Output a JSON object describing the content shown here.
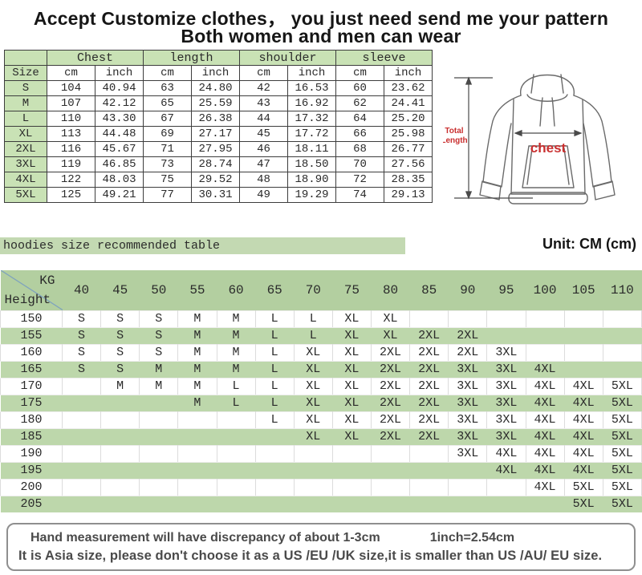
{
  "header": {
    "line1": "Accept Customize clothes， you just need send me your pattern",
    "line2": "Both women and men can wear"
  },
  "size_table": {
    "corner_label": "Size",
    "groups": [
      {
        "label": "Chest"
      },
      {
        "label": "length"
      },
      {
        "label": "shoulder"
      },
      {
        "label": "sleeve"
      }
    ],
    "unit_headers": [
      "cm",
      "inch",
      "cm",
      "inch",
      "cm",
      "inch",
      "cm",
      "inch"
    ],
    "rows": [
      {
        "size": "S",
        "values": [
          "104",
          "40.94",
          "63",
          "24.80",
          "42",
          "16.53",
          "60",
          "23.62"
        ]
      },
      {
        "size": "M",
        "values": [
          "107",
          "42.12",
          "65",
          "25.59",
          "43",
          "16.92",
          "62",
          "24.41"
        ]
      },
      {
        "size": "L",
        "values": [
          "110",
          "43.30",
          "67",
          "26.38",
          "44",
          "17.32",
          "64",
          "25.20"
        ]
      },
      {
        "size": "XL",
        "values": [
          "113",
          "44.48",
          "69",
          "27.17",
          "45",
          "17.72",
          "66",
          "25.98"
        ]
      },
      {
        "size": "2XL",
        "values": [
          "116",
          "45.67",
          "71",
          "27.95",
          "46",
          "18.11",
          "68",
          "26.77"
        ]
      },
      {
        "size": "3XL",
        "values": [
          "119",
          "46.85",
          "73",
          "28.74",
          "47",
          "18.50",
          "70",
          "27.56"
        ]
      },
      {
        "size": "4XL",
        "values": [
          "122",
          "48.03",
          "75",
          "29.52",
          "48",
          "18.90",
          "72",
          "28.35"
        ]
      },
      {
        "size": "5XL",
        "values": [
          "125",
          "49.21",
          "77",
          "30.31",
          "49",
          "19.29",
          "74",
          "29.13"
        ]
      }
    ]
  },
  "diagram": {
    "chest_label": "chest",
    "total_length_line1": "Total",
    "total_length_line2": "Length"
  },
  "recommend": {
    "banner": "hoodies size recommended table",
    "unit_label": "Unit: CM (cm)",
    "corner_top": "KG",
    "corner_bottom": "Height",
    "kg_columns": [
      "40",
      "45",
      "50",
      "55",
      "60",
      "65",
      "70",
      "75",
      "80",
      "85",
      "90",
      "95",
      "100",
      "105",
      "110"
    ],
    "rows": [
      {
        "height": "150",
        "cells": [
          "S",
          "S",
          "S",
          "M",
          "M",
          "L",
          "L",
          "XL",
          "XL",
          "",
          "",
          "",
          "",
          "",
          ""
        ]
      },
      {
        "height": "155",
        "cells": [
          "S",
          "S",
          "S",
          "M",
          "M",
          "L",
          "L",
          "XL",
          "XL",
          "2XL",
          "2XL",
          "",
          "",
          "",
          ""
        ]
      },
      {
        "height": "160",
        "cells": [
          "S",
          "S",
          "S",
          "M",
          "M",
          "L",
          "XL",
          "XL",
          "2XL",
          "2XL",
          "2XL",
          "3XL",
          "",
          "",
          ""
        ]
      },
      {
        "height": "165",
        "cells": [
          "S",
          "S",
          "M",
          "M",
          "M",
          "L",
          "XL",
          "XL",
          "2XL",
          "2XL",
          "3XL",
          "3XL",
          "4XL",
          "",
          ""
        ]
      },
      {
        "height": "170",
        "cells": [
          "",
          "M",
          "M",
          "M",
          "L",
          "L",
          "XL",
          "XL",
          "2XL",
          "2XL",
          "3XL",
          "3XL",
          "4XL",
          "4XL",
          "5XL"
        ]
      },
      {
        "height": "175",
        "cells": [
          "",
          "",
          "",
          "M",
          "L",
          "L",
          "XL",
          "XL",
          "2XL",
          "2XL",
          "3XL",
          "3XL",
          "4XL",
          "4XL",
          "5XL"
        ]
      },
      {
        "height": "180",
        "cells": [
          "",
          "",
          "",
          "",
          "",
          "L",
          "XL",
          "XL",
          "2XL",
          "2XL",
          "3XL",
          "3XL",
          "4XL",
          "4XL",
          "5XL"
        ]
      },
      {
        "height": "185",
        "cells": [
          "",
          "",
          "",
          "",
          "",
          "",
          "XL",
          "XL",
          "2XL",
          "2XL",
          "3XL",
          "3XL",
          "4XL",
          "4XL",
          "5XL"
        ]
      },
      {
        "height": "190",
        "cells": [
          "",
          "",
          "",
          "",
          "",
          "",
          "",
          "",
          "",
          "",
          "3XL",
          "4XL",
          "4XL",
          "4XL",
          "5XL"
        ]
      },
      {
        "height": "195",
        "cells": [
          "",
          "",
          "",
          "",
          "",
          "",
          "",
          "",
          "",
          "",
          "",
          "4XL",
          "4XL",
          "4XL",
          "5XL"
        ]
      },
      {
        "height": "200",
        "cells": [
          "",
          "",
          "",
          "",
          "",
          "",
          "",
          "",
          "",
          "",
          "",
          "",
          "4XL",
          "5XL",
          "5XL"
        ]
      },
      {
        "height": "205",
        "cells": [
          "",
          "",
          "",
          "",
          "",
          "",
          "",
          "",
          "",
          "",
          "",
          "",
          "",
          "5XL",
          "5XL"
        ]
      }
    ]
  },
  "footer": {
    "line1_left": "Hand measurement will have discrepancy of about 1-3cm",
    "line1_right": "1inch=2.54cm",
    "line2": "It is Asia size, please don't choose it as a US /EU /UK size,it is smaller than US /AU/ EU size."
  },
  "colors": {
    "green_light": "#c9e2b5",
    "green_banner": "#c3d9b2",
    "green_header": "#b3cfa0",
    "green_row": "#bdd7ab",
    "accent_red": "#c92f2f",
    "diagonal_blue": "#7fa3bd"
  }
}
